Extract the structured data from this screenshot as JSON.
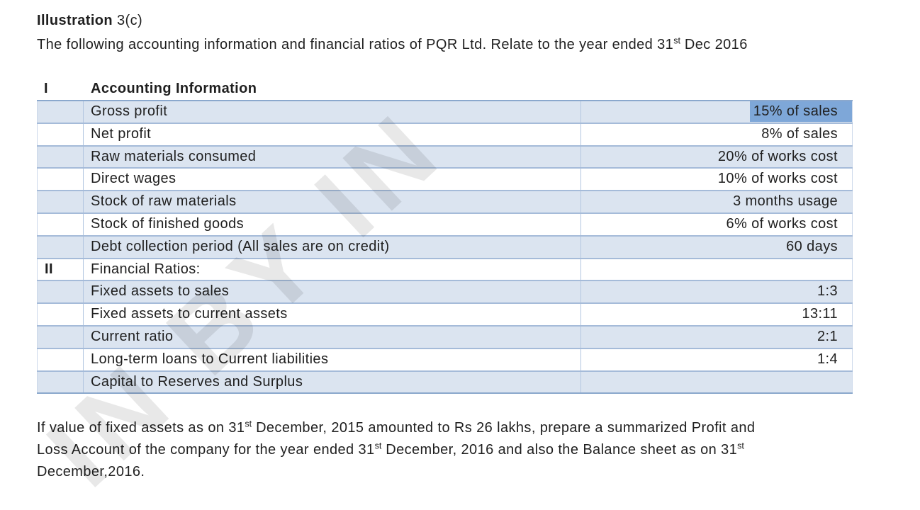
{
  "watermark": {
    "text": "IN BY IN"
  },
  "title": {
    "bold": "Illustration",
    "rest": " 3(c)"
  },
  "intro": [
    {
      "t": "The following accounting information and financial ratios of PQR Ltd. Relate to the year ended 31"
    },
    {
      "s": "st"
    },
    {
      "t": " Dec 2016"
    }
  ],
  "table": {
    "section_numeral": "I",
    "section_heading": "Accounting Information",
    "rows": [
      {
        "numeral": "",
        "label": "Gross profit",
        "value": "15% of sales",
        "shaded": true,
        "selected": true
      },
      {
        "numeral": "",
        "label": "Net profit",
        "value": "8% of sales",
        "shaded": false,
        "selected": false
      },
      {
        "numeral": "",
        "label": "Raw materials consumed",
        "value": "20% of works cost",
        "shaded": true,
        "selected": false
      },
      {
        "numeral": "",
        "label": "Direct wages",
        "value": "10% of works cost",
        "shaded": false,
        "selected": false
      },
      {
        "numeral": "",
        "label": "Stock of raw materials",
        "value": "3 months usage",
        "shaded": true,
        "selected": false
      },
      {
        "numeral": "",
        "label": "Stock of finished goods",
        "value": "6% of works cost",
        "shaded": false,
        "selected": false
      },
      {
        "numeral": "",
        "label": "Debt collection period (All sales are on credit)",
        "value": "60 days",
        "shaded": true,
        "selected": false
      },
      {
        "numeral": "II",
        "label": "Financial Ratios:",
        "value": "",
        "shaded": false,
        "selected": false
      },
      {
        "numeral": "",
        "label": "Fixed assets to sales",
        "value": "1:3",
        "shaded": true,
        "selected": false
      },
      {
        "numeral": "",
        "label": "Fixed assets to current assets",
        "value": "13:11",
        "shaded": false,
        "selected": false
      },
      {
        "numeral": "",
        "label": "Current ratio",
        "value": "2:1",
        "shaded": true,
        "selected": false
      },
      {
        "numeral": "",
        "label": "Long-term loans to Current liabilities",
        "value": "1:4",
        "shaded": false,
        "selected": false
      },
      {
        "numeral": "",
        "label": "Capital to Reserves and Surplus",
        "value": "",
        "shaded": true,
        "selected": false
      }
    ]
  },
  "closing": [
    [
      {
        "t": "If value of fixed assets as on 31"
      },
      {
        "s": "st"
      },
      {
        "t": " December, 2015 amounted to Rs 26 lakhs, prepare a summarized Profit and"
      }
    ],
    [
      {
        "t": "Loss Account of the company for the year ended 31"
      },
      {
        "s": "st"
      },
      {
        "t": " December, 2016 and also the Balance sheet as on 31"
      },
      {
        "s": "st"
      }
    ],
    [
      {
        "t": "December,2016."
      }
    ]
  ],
  "colors": {
    "row_shade": "#dbe4f0",
    "row_border": "#a5bbd9",
    "table_top_border": "#8ba8cd",
    "column_border": "#b3c6e0",
    "selection_highlight": "#7ea7d8",
    "text": "#1f1f1f"
  }
}
